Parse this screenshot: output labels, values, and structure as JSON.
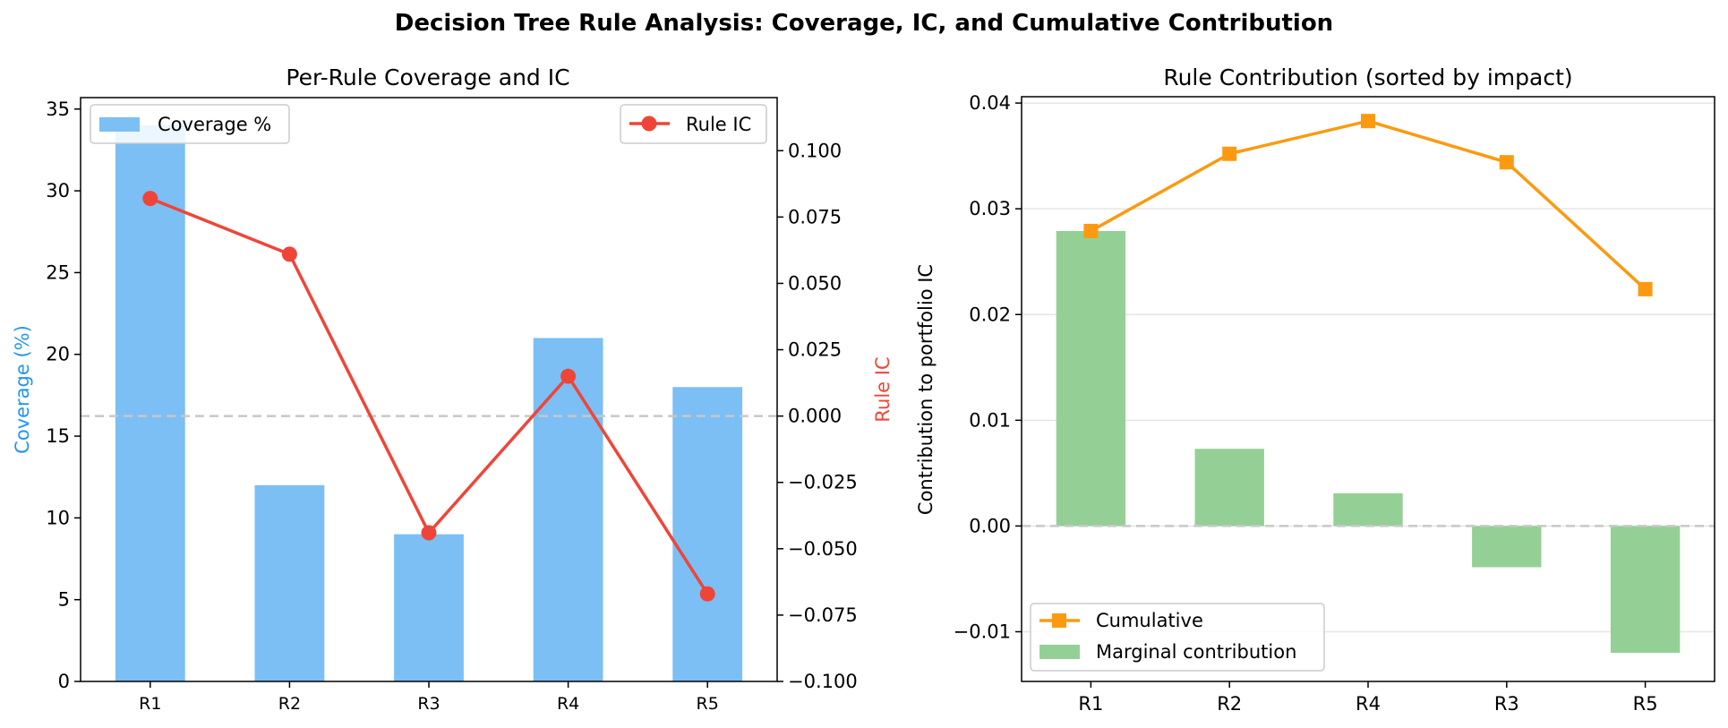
{
  "figure": {
    "suptitle": "Decision Tree Rule Analysis: Coverage, IC, and Cumulative Contribution"
  },
  "colors": {
    "coverage_bar": "#7bbff5",
    "rule_ic": "#ef4538",
    "coverage_axis_label": "#2196f3",
    "cumulative": "#fb9a10",
    "marginal_bar": "#94d095",
    "zero_line": "#c8c8c8",
    "grid": "#e6e6e6"
  },
  "chart_data": [
    {
      "type": "bar",
      "title": "Per-Rule Coverage and IC",
      "categories": [
        "R1",
        "R2",
        "R3",
        "R4",
        "R5"
      ],
      "series": [
        {
          "name": "Coverage %",
          "type": "bar",
          "axis": "left",
          "values": [
            34,
            12,
            9,
            21,
            18
          ]
        },
        {
          "name": "Rule IC",
          "type": "line",
          "axis": "right",
          "values": [
            0.082,
            0.061,
            -0.044,
            0.015,
            -0.067
          ]
        }
      ],
      "ylabel": "Coverage (%)",
      "ylim": [
        0,
        35.7
      ],
      "yticks": [
        "0",
        "5",
        "10",
        "15",
        "20",
        "25",
        "30",
        "35"
      ],
      "y2label": "Rule IC",
      "y2lim": [
        -0.1,
        0.12
      ],
      "y2ticks": [
        "0.100",
        "0.075",
        "0.050",
        "0.025",
        "0.000",
        "−0.025",
        "−0.050",
        "−0.075",
        "−0.100"
      ],
      "reference_line": 0.0,
      "grid": false,
      "legend": [
        "top-left",
        "top-right"
      ]
    },
    {
      "type": "bar",
      "title": "Rule Contribution (sorted by impact)",
      "categories": [
        "R1",
        "R2",
        "R4",
        "R3",
        "R5"
      ],
      "series": [
        {
          "name": "Cumulative",
          "type": "line",
          "values": [
            0.0279,
            0.0352,
            0.0383,
            0.0344,
            0.0224
          ]
        },
        {
          "name": "Marginal contribution",
          "type": "bar",
          "values": [
            0.0279,
            0.0073,
            0.0031,
            -0.0039,
            -0.012
          ]
        }
      ],
      "ylabel": "Contribution to portfolio IC",
      "ylim": [
        -0.0147,
        0.0406
      ],
      "yticks": [
        "−0.01",
        "0.00",
        "0.01",
        "0.02",
        "0.03",
        "0.04"
      ],
      "reference_line": 0.0,
      "grid": true,
      "legend": "bottom-left"
    }
  ]
}
